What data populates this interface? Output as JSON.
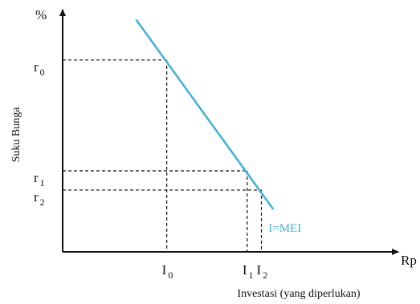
{
  "chart_data": {
    "type": "line",
    "title": "",
    "xlabel": "Investasi (yang diperlukan)",
    "ylabel": "Suku Bunga",
    "x_axis_unit": "Rp",
    "y_axis_unit": "%",
    "xlim": [
      0,
      10
    ],
    "ylim": [
      0,
      10
    ],
    "grid": false,
    "legend": "none",
    "colors": {
      "line": "#3fb0d9",
      "axis": "#111111",
      "guide": "#111111"
    },
    "series": [
      {
        "name": "I=MEI",
        "x": [
          3.1,
          8.9
        ],
        "y": [
          10.9,
          2.0
        ]
      }
    ],
    "points": [
      {
        "x": 4.4,
        "y": 9.0,
        "x_label": "I",
        "x_sub": "0",
        "y_label": "r",
        "y_sub": "0"
      },
      {
        "x": 7.8,
        "y": 3.8,
        "x_label": "I",
        "x_sub": "1",
        "y_label": "r",
        "y_sub": "1"
      },
      {
        "x": 8.4,
        "y": 2.9,
        "x_label": "I",
        "x_sub": "2",
        "y_label": "r",
        "y_sub": "2"
      }
    ]
  }
}
